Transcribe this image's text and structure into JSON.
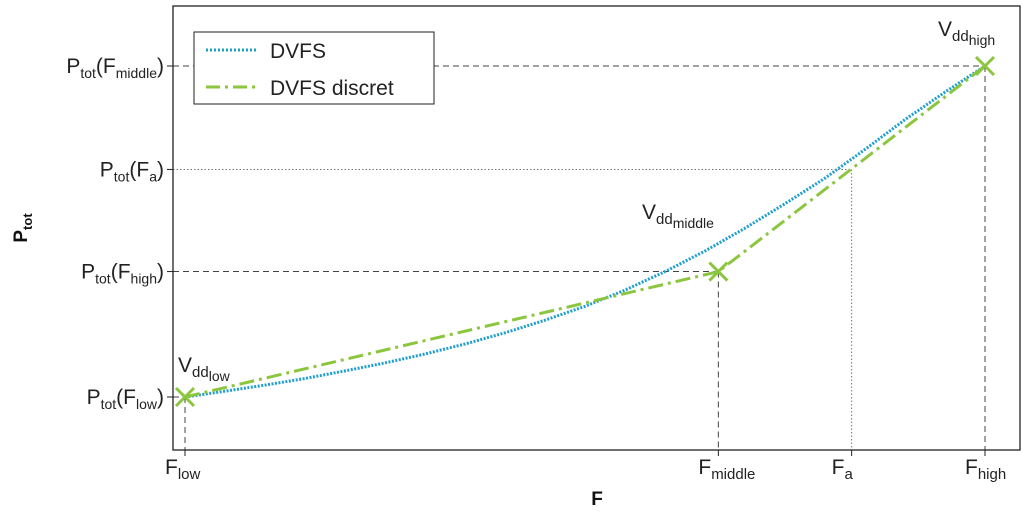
{
  "chart_data": {
    "type": "line",
    "xlabel": "F",
    "ylabel_main": "P",
    "ylabel_sub": "tot",
    "grid": false,
    "legend_position": "top-left",
    "colors": {
      "dvfs": "#1f9fd0",
      "discrete": "#8cc63f",
      "ref": "#444444",
      "axis": "#222222"
    },
    "x_ticks": [
      {
        "main": "F",
        "sub": "low"
      },
      {
        "main": "F",
        "sub": "middle"
      },
      {
        "main": "F",
        "sub": "a"
      },
      {
        "main": "F",
        "sub": "high"
      }
    ],
    "y_ticks": [
      {
        "prefix": "P",
        "sub": "tot",
        "open": "(F",
        "inner": "middle",
        "close": ")"
      },
      {
        "prefix": "P",
        "sub": "tot",
        "open": "(F",
        "inner": "a",
        "close": ")"
      },
      {
        "prefix": "P",
        "sub": "tot",
        "open": "(F",
        "inner": "high",
        "close": ")"
      },
      {
        "prefix": "P",
        "sub": "tot",
        "open": "(F",
        "inner": "low",
        "close": ")"
      }
    ],
    "legend": [
      {
        "name": "DVFS"
      },
      {
        "name": "DVFS discret"
      }
    ],
    "annotations": [
      {
        "main": "V",
        "sub": "dd",
        "subsub": "low"
      },
      {
        "main": "V",
        "sub": "dd",
        "subsub": "middle"
      },
      {
        "main": "V",
        "sub": "dd",
        "subsub": "high"
      }
    ],
    "series": [
      {
        "name": "DVFS",
        "style": "dotted",
        "x": [
          0,
          0.05,
          0.1,
          0.15,
          0.2,
          0.25,
          0.3,
          0.35,
          0.4,
          0.45,
          0.5,
          0.55,
          0.6,
          0.65,
          0.7,
          0.75,
          0.8,
          0.85,
          0.9,
          0.95,
          1
        ],
        "y": [
          0,
          0.0175,
          0.036,
          0.056,
          0.079,
          0.103,
          0.13,
          0.16,
          0.194,
          0.232,
          0.274,
          0.323,
          0.379,
          0.441,
          0.51,
          0.584,
          0.661,
          0.748,
          0.838,
          0.921,
          1
        ]
      },
      {
        "name": "DVFS discret",
        "style": "dashdot",
        "x": [
          0,
          0.6667,
          1
        ],
        "y": [
          0,
          0.379,
          1
        ]
      }
    ],
    "markers": [
      {
        "x": 0,
        "y": 0
      },
      {
        "x": 0.6667,
        "y": 0.379
      },
      {
        "x": 1,
        "y": 1
      }
    ],
    "ref_points": [
      {
        "x": 0,
        "y": 0,
        "style": "dashed"
      },
      {
        "x": 0.6667,
        "y": 0.379,
        "style": "dashed"
      },
      {
        "x": 0.8333,
        "y": 0.6875,
        "style": "dotted"
      },
      {
        "x": 1,
        "y": 1,
        "style": "dashed"
      }
    ]
  }
}
